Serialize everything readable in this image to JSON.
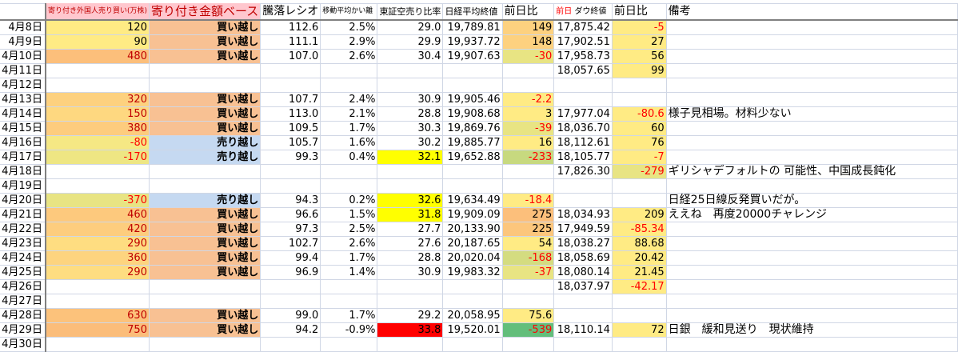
{
  "headers": {
    "a": "寄り付き外国人売り買い(万株)",
    "b": "寄り付き金額ベース",
    "c": "騰落レシオ",
    "d": "移動平均かい離",
    "e": "東証空売り比率",
    "f": "日経平均終値",
    "g": "前日比",
    "h_red": "前日",
    "h": "ダウ終値",
    "i": "前日比",
    "j": "備考"
  },
  "colors": {
    "yellow": "#ffeb84",
    "orange": "#fcbf7b",
    "buy": "#f8c193",
    "sell": "#c5d9f1",
    "hot": "#ffff00",
    "red": "#ff0000",
    "green": "#63be7b",
    "yg": "#c7d97f",
    "khaki": "#e8e483",
    "pink": "#ffc7ce"
  },
  "rows": [
    {
      "date": "4月8日",
      "a": "120",
      "b": "買い越し",
      "c": "112.6",
      "d": "2.5%",
      "e": "29.0",
      "f": "19,789.81",
      "g": "149",
      "h": "17,875.42",
      "i": "-5",
      "j": ""
    },
    {
      "date": "4月9日",
      "a": "90",
      "b": "買い越し",
      "c": "111.1",
      "d": "2.9%",
      "e": "29.9",
      "f": "19,937.72",
      "g": "148",
      "h": "17,902.51",
      "i": "27",
      "j": ""
    },
    {
      "date": "4月10日",
      "a": "480",
      "b": "買い越し",
      "c": "107.0",
      "d": "2.6%",
      "e": "30.4",
      "f": "19,907.63",
      "g": "-30",
      "h": "17,958.73",
      "i": "56",
      "j": ""
    },
    {
      "date": "4月11日",
      "a": "",
      "b": "",
      "c": "",
      "d": "",
      "e": "",
      "f": "",
      "g": "",
      "h": "18,057.65",
      "i": "99",
      "j": ""
    },
    {
      "date": "4月12日",
      "a": "",
      "b": "",
      "c": "",
      "d": "",
      "e": "",
      "f": "",
      "g": "",
      "h": "",
      "i": "",
      "j": ""
    },
    {
      "date": "4月13日",
      "a": "320",
      "b": "買い越し",
      "c": "107.7",
      "d": "2.4%",
      "e": "30.9",
      "f": "19,905.46",
      "g": "-2.2",
      "h": "",
      "i": "",
      "j": ""
    },
    {
      "date": "4月14日",
      "a": "150",
      "b": "買い越し",
      "c": "113.0",
      "d": "2.1%",
      "e": "28.8",
      "f": "19,908.68",
      "g": "3",
      "h": "17,977.04",
      "i": "-80.6",
      "j": "様子見相場。材料少ない"
    },
    {
      "date": "4月15日",
      "a": "380",
      "b": "買い越し",
      "c": "109.5",
      "d": "1.7%",
      "e": "30.3",
      "f": "19,869.76",
      "g": "-39",
      "h": "18,036.70",
      "i": "60",
      "j": ""
    },
    {
      "date": "4月16日",
      "a": "-80",
      "b": "売り越し",
      "c": "105.7",
      "d": "1.6%",
      "e": "30.2",
      "f": "19,885.77",
      "g": "16",
      "h": "18,112.61",
      "i": "76",
      "j": ""
    },
    {
      "date": "4月17日",
      "a": "-170",
      "b": "売り越し",
      "c": "99.3",
      "d": "0.4%",
      "e": "32.1",
      "f": "19,652.88",
      "g": "-233",
      "h": "18,105.77",
      "i": "-7",
      "j": ""
    },
    {
      "date": "4月18日",
      "a": "",
      "b": "",
      "c": "",
      "d": "",
      "e": "",
      "f": "",
      "g": "",
      "h": "17,826.30",
      "i": "-279",
      "j": "ギリシャデフォルトの 可能性、中国成長鈍化"
    },
    {
      "date": "4月19日",
      "a": "",
      "b": "",
      "c": "",
      "d": "",
      "e": "",
      "f": "",
      "g": "",
      "h": "",
      "i": "",
      "j": ""
    },
    {
      "date": "4月20日",
      "a": "-370",
      "b": "売り越し",
      "c": "94.3",
      "d": "0.2%",
      "e": "32.6",
      "f": "19,634.49",
      "g": "-18.4",
      "h": "",
      "i": "",
      "j": "日経25日線反発買いだが。"
    },
    {
      "date": "4月21日",
      "a": "460",
      "b": "買い越し",
      "c": "96.6",
      "d": "1.5%",
      "e": "31.8",
      "f": "19,909.09",
      "g": "275",
      "h": "18,034.93",
      "i": "209",
      "j": "ええね　再度20000チャレンジ"
    },
    {
      "date": "4月22日",
      "a": "420",
      "b": "買い越し",
      "c": "97.3",
      "d": "2.5%",
      "e": "27.7",
      "f": "20,133.90",
      "g": "225",
      "h": "17,949.59",
      "i": "-85.34",
      "j": ""
    },
    {
      "date": "4月23日",
      "a": "290",
      "b": "買い越し",
      "c": "102.7",
      "d": "2.6%",
      "e": "27.6",
      "f": "20,187.65",
      "g": "54",
      "h": "18,038.27",
      "i": "88.68",
      "j": ""
    },
    {
      "date": "4月24日",
      "a": "360",
      "b": "買い越し",
      "c": "99.4",
      "d": "1.7%",
      "e": "28.8",
      "f": "20,020.04",
      "g": "-168",
      "h": "18,058.69",
      "i": "20.42",
      "j": ""
    },
    {
      "date": "4月25日",
      "a": "290",
      "b": "買い越し",
      "c": "96.9",
      "d": "1.4%",
      "e": "30.9",
      "f": "19,983.32",
      "g": "-37",
      "h": "18,080.14",
      "i": "21.45",
      "j": ""
    },
    {
      "date": "4月26日",
      "a": "",
      "b": "",
      "c": "",
      "d": "",
      "e": "",
      "f": "",
      "g": "",
      "h": "18,037.97",
      "i": "-42.17",
      "j": ""
    },
    {
      "date": "4月27日",
      "a": "",
      "b": "",
      "c": "",
      "d": "",
      "e": "",
      "f": "",
      "g": "",
      "h": "",
      "i": "",
      "j": ""
    },
    {
      "date": "4月28日",
      "a": "630",
      "b": "買い越し",
      "c": "99.0",
      "d": "1.7%",
      "e": "29.2",
      "f": "20,058.95",
      "g": "75.6",
      "h": "",
      "i": "",
      "j": ""
    },
    {
      "date": "4月29日",
      "a": "750",
      "b": "買い越し",
      "c": "94.2",
      "d": "-0.9%",
      "e": "33.8",
      "f": "19,520.01",
      "g": "-539",
      "h": "18,110.14",
      "i": "72",
      "j": "日銀　緩和見送り　現状維持"
    },
    {
      "date": "4月30日",
      "a": "",
      "b": "",
      "c": "",
      "d": "",
      "e": "",
      "f": "",
      "g": "",
      "h": "",
      "i": "",
      "j": ""
    }
  ]
}
